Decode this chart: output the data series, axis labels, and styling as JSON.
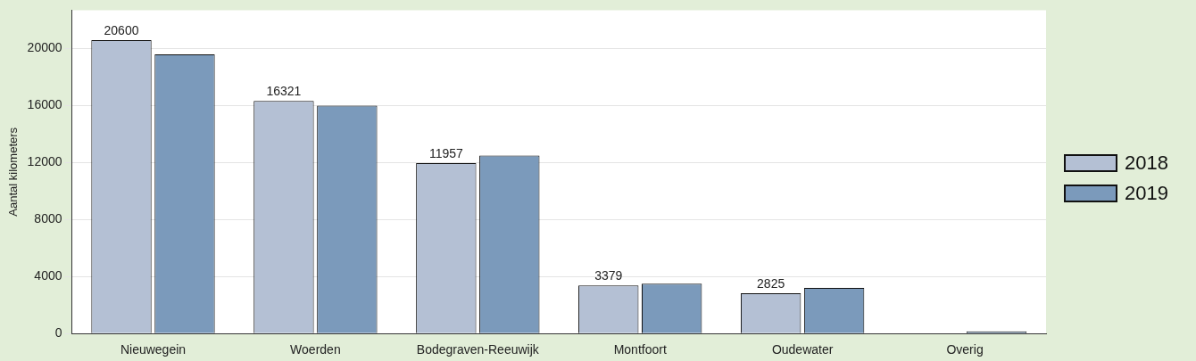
{
  "chart_data": {
    "type": "bar",
    "ylabel": "Aantal kilometers",
    "categories": [
      "Nieuwegein",
      "Woerden",
      "Bodegraven-Reeuwijk",
      "Montfoort",
      "Oudewater",
      "Overig"
    ],
    "series": [
      {
        "name": "2018",
        "color": "#b4c0d4",
        "values": [
          20600,
          16321,
          11957,
          3379,
          2825,
          null
        ],
        "value_labels": [
          "20600",
          "16321",
          "11957",
          "3379",
          "2825",
          null
        ]
      },
      {
        "name": "2019",
        "color": "#7b9abb",
        "values": [
          19600,
          16000,
          12500,
          3500,
          3200,
          150
        ]
      }
    ],
    "ylim": [
      0,
      22700
    ],
    "yticks": [
      0,
      4000,
      8000,
      12000,
      16000,
      20000
    ],
    "grid": "y",
    "legend": "right"
  }
}
